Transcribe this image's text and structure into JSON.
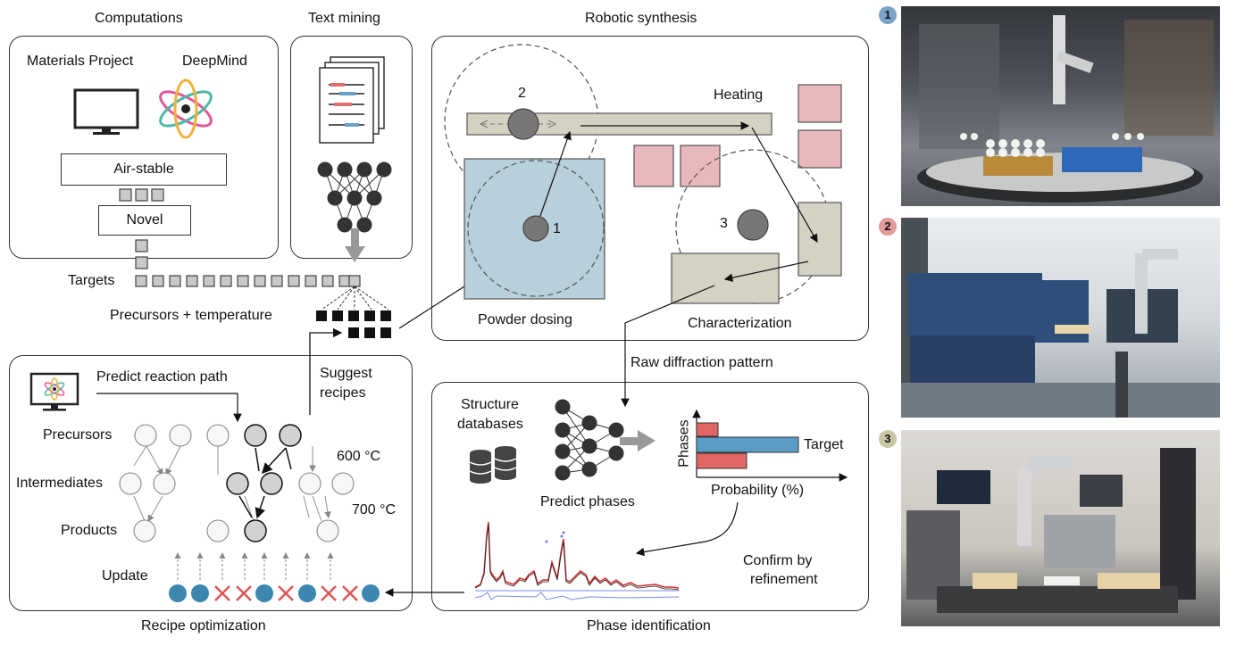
{
  "sections": {
    "computations": "Computations",
    "text_mining": "Text mining",
    "robotic_synthesis": "Robotic synthesis",
    "recipe_optimization": "Recipe optimization",
    "phase_identification": "Phase identification"
  },
  "computations": {
    "materials_project": "Materials Project",
    "deepmind": "DeepMind",
    "air_stable": "Air-stable",
    "novel": "Novel"
  },
  "pipeline": {
    "targets": "Targets",
    "precursors_temperature": "Precursors + temperature",
    "suggest_recipes_1": "Suggest",
    "suggest_recipes_2": "recipes",
    "raw_diffraction": "Raw diffraction pattern"
  },
  "robotic": {
    "station_1": "1",
    "station_2": "2",
    "station_3": "3",
    "heating": "Heating",
    "powder_dosing": "Powder dosing",
    "characterization": "Characterization"
  },
  "recipe": {
    "predict_reaction_path": "Predict reaction path",
    "precursors": "Precursors",
    "intermediates": "Intermediates",
    "products": "Products",
    "update": "Update",
    "temp_600": "600 °C",
    "temp_700": "700 °C"
  },
  "phase": {
    "structure_databases_1": "Structure",
    "structure_databases_2": "databases",
    "predict_phases": "Predict phases",
    "phases_axis": "Phases",
    "target": "Target",
    "probability": "Probability (%)",
    "confirm_1": "Confirm by",
    "confirm_2": "refinement"
  },
  "photos": {
    "badge_1": "1",
    "badge_2": "2",
    "badge_3": "3",
    "badge_1_color": "#7ea3c9",
    "badge_2_color": "#e29a9a",
    "badge_3_color": "#c9c6a6"
  },
  "colors": {
    "powder_blue": "#b8cfdc",
    "heating_pink": "#e8b8bc",
    "station_gray": "#d3d2c3",
    "dot_blue": "#3d86b0",
    "cross_red": "#e05555",
    "bar_blue": "#5b9cc6",
    "bar_red": "#e26666"
  }
}
